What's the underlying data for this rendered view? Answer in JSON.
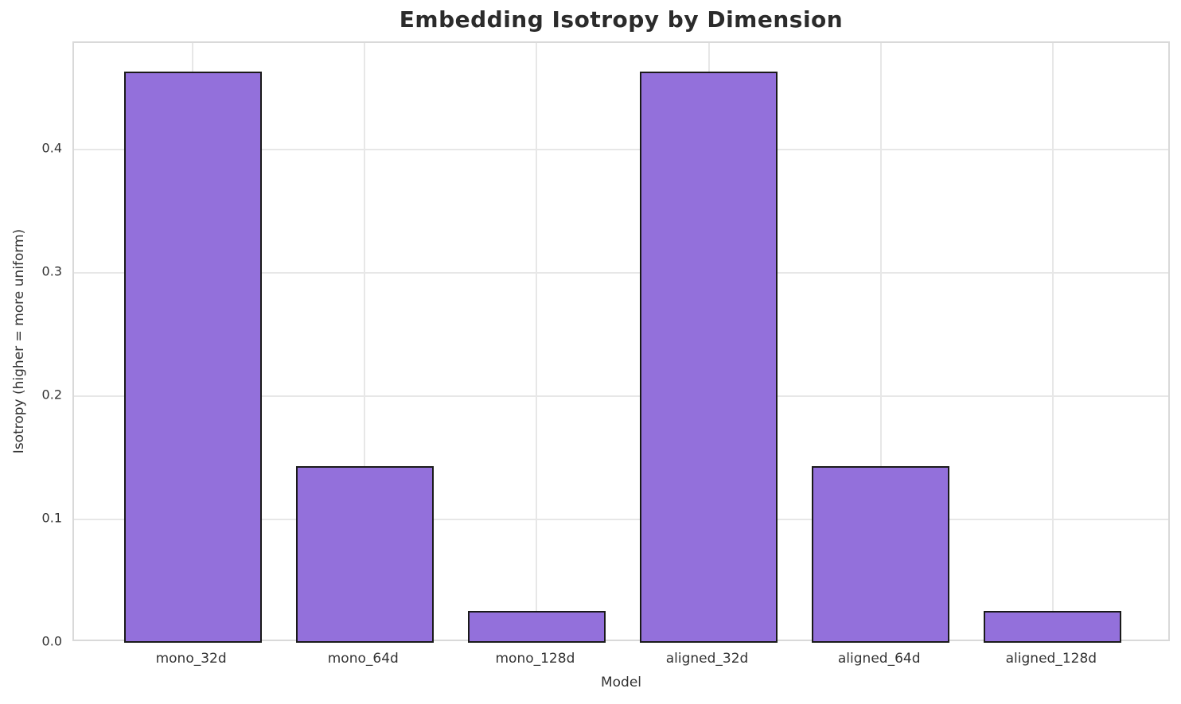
{
  "chart_data": {
    "type": "bar",
    "title": "Embedding Isotropy by Dimension",
    "xlabel": "Model",
    "ylabel": "Isotropy (higher = more uniform)",
    "categories": [
      "mono_32d",
      "mono_64d",
      "mono_128d",
      "aligned_32d",
      "aligned_64d",
      "aligned_128d"
    ],
    "values": [
      0.463,
      0.143,
      0.026,
      0.463,
      0.143,
      0.026
    ],
    "ylim": [
      0,
      0.4865
    ],
    "yticks": [
      0.0,
      0.1,
      0.2,
      0.3,
      0.4
    ],
    "ytick_labels": [
      "0.0",
      "0.1",
      "0.2",
      "0.3",
      "0.4"
    ],
    "grid": true,
    "legend": "none",
    "bar_color": "#9370DB",
    "bar_edge_color": "#1a1a1a"
  }
}
